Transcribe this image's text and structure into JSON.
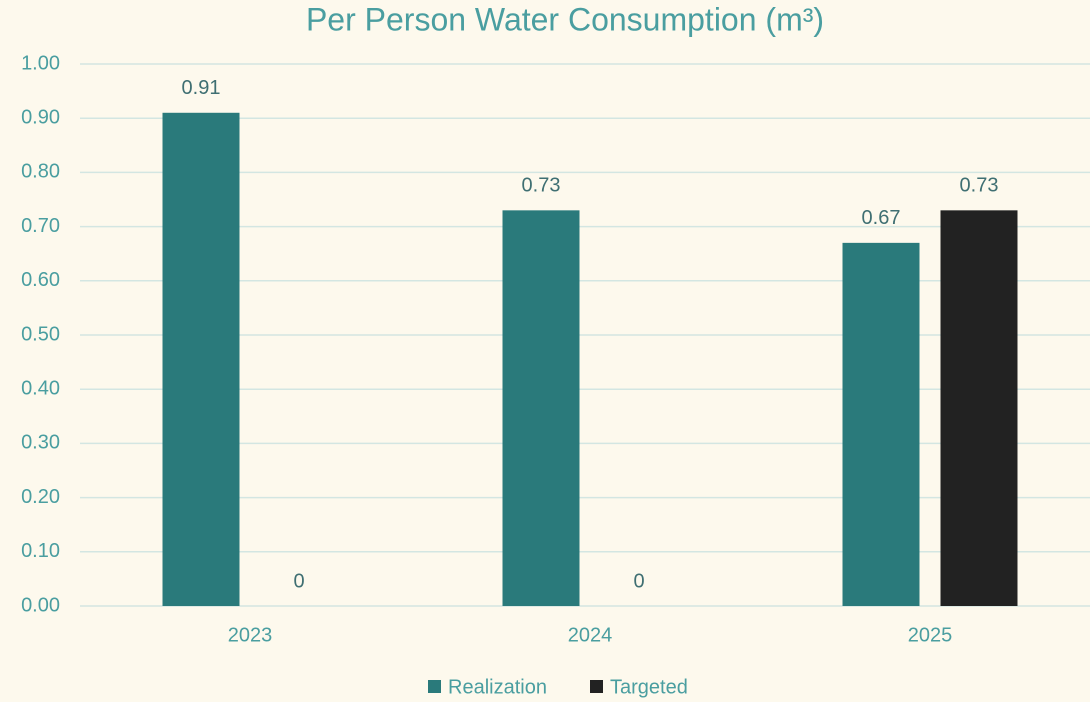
{
  "chart_data": {
    "type": "bar",
    "title": "Per Person Water Consumption (m³)",
    "categories": [
      "2023",
      "2024",
      "2025"
    ],
    "series": [
      {
        "name": "Realization",
        "color": "#2a7a7b",
        "values": [
          0.91,
          0.73,
          0.67
        ]
      },
      {
        "name": "Targeted",
        "color": "#222222",
        "values": [
          0,
          0,
          0.73
        ]
      }
    ],
    "ylim": [
      0,
      1
    ],
    "yticks": [
      {
        "value": 0,
        "label": "0.00"
      },
      {
        "value": 0.1,
        "label": "0.10"
      },
      {
        "value": 0.2,
        "label": "0.20"
      },
      {
        "value": 0.3,
        "label": "0.30"
      },
      {
        "value": 0.4,
        "label": "0.40"
      },
      {
        "value": 0.5,
        "label": "0.50"
      },
      {
        "value": 0.6,
        "label": "0.60"
      },
      {
        "value": 0.7,
        "label": "0.70"
      },
      {
        "value": 0.8,
        "label": "0.80"
      },
      {
        "value": 0.9,
        "label": "0.90"
      },
      {
        "value": 1,
        "label": "1.00"
      }
    ],
    "grid": true,
    "legend": "bottom"
  }
}
